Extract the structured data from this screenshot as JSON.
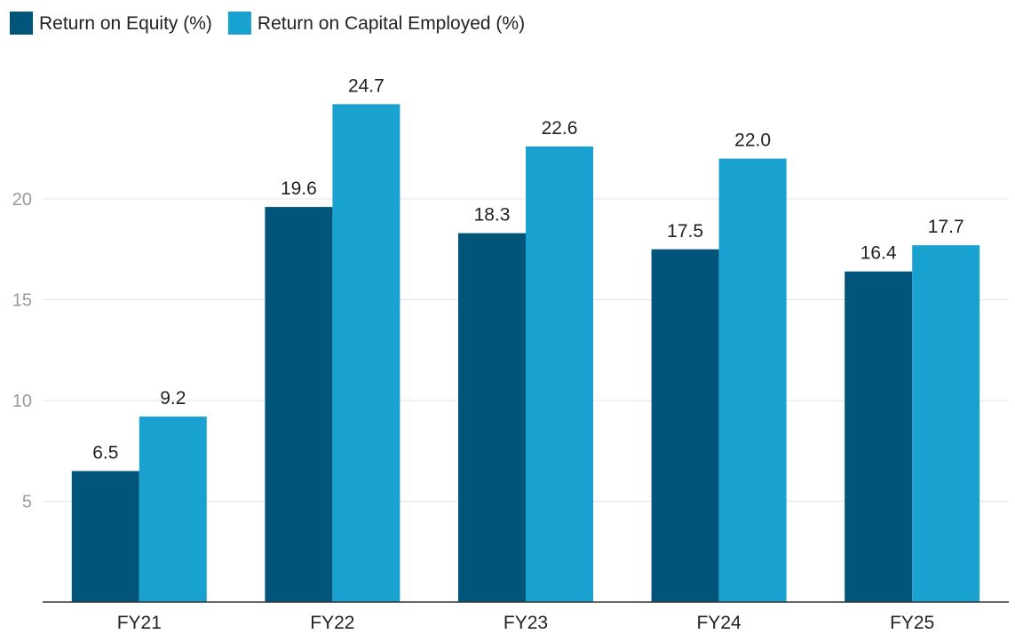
{
  "chart_data": {
    "type": "bar",
    "title": "",
    "xlabel": "",
    "ylabel": "",
    "categories": [
      "FY21",
      "FY22",
      "FY23",
      "FY24",
      "FY25"
    ],
    "series": [
      {
        "name": "Return on Equity (%)",
        "color": "#01557a",
        "values": [
          6.5,
          19.6,
          18.3,
          17.5,
          16.4
        ],
        "labels": [
          "6.5",
          "19.6",
          "18.3",
          "17.5",
          "16.4"
        ]
      },
      {
        "name": "Return on Capital Employed (%)",
        "color": "#19a1cf",
        "values": [
          9.2,
          24.7,
          22.6,
          22.0,
          17.7
        ],
        "labels": [
          "9.2",
          "24.7",
          "22.6",
          "22.0",
          "17.7"
        ]
      }
    ],
    "yticks": [
      5,
      10,
      15,
      20
    ],
    "ylim": [
      0,
      27.5
    ],
    "grid": true,
    "legend_position": "top-left"
  }
}
